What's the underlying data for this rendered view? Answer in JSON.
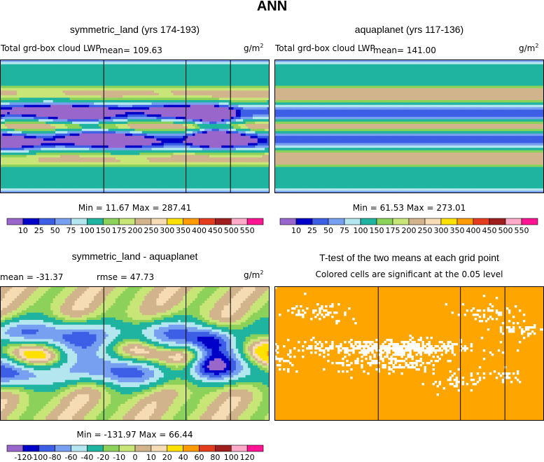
{
  "title": "ANN",
  "colors": {
    "land_frame": "#000000",
    "sig_orange": "#FFA500",
    "sig_white": "#FFFFFF"
  },
  "panels": [
    {
      "id": "p1",
      "title": "symmetric_land (yrs 174-193)",
      "left_text": "Total grd-box cloud LWP",
      "mean_text": "mean= 109.63",
      "units": "g/m",
      "units_sup": "2",
      "minmax": "Min =  11.67 Max = 287.41"
    },
    {
      "id": "p2",
      "title": "aquaplanet (yrs 117-136)",
      "left_text": "Total grd-box cloud LWP",
      "mean_text": "mean= 141.00",
      "units": "g/m",
      "units_sup": "2",
      "minmax": "Min =  61.53 Max = 273.01"
    },
    {
      "id": "p3",
      "title": "symmetric_land - aquaplanet",
      "left_text": "mean = -31.37",
      "mean_text": "rmse =  47.73",
      "units": "g/m",
      "units_sup": "2",
      "minmax": "Min = -131.97 Max =  66.44"
    },
    {
      "id": "p4",
      "title": "T-test of the two means at each grid point",
      "left_text": "Colored cells are significant at the 0.05 level"
    }
  ],
  "chart_data": [
    {
      "type": "heatmap",
      "name": "symmetric_land",
      "title": "symmetric_land (yrs 174-193)",
      "variable": "Total grd-box cloud LWP",
      "units": "g/m2",
      "mean": 109.63,
      "min": 11.67,
      "max": 287.41,
      "colorbar": {
        "levels": [
          10,
          25,
          50,
          75,
          100,
          150,
          175,
          200,
          250,
          300,
          350,
          400,
          450,
          500,
          550
        ],
        "tick_labels": [
          "10",
          "25",
          "50",
          "75",
          "100",
          "150",
          "175",
          "200",
          "250",
          "300",
          "350",
          "400",
          "450",
          "500",
          "550"
        ],
        "colors": [
          "#9966CC",
          "#0000C8",
          "#3C5FE6",
          "#78A0F0",
          "#B4E6F0",
          "#1EB4A0",
          "#8CD25A",
          "#C8E678",
          "#D2B48C",
          "#F5DCB4",
          "#FFE100",
          "#FF9B00",
          "#E63C1E",
          "#A01E1E",
          "#FFAAC8",
          "#FF1493"
        ]
      }
    },
    {
      "type": "heatmap",
      "name": "aquaplanet",
      "title": "aquaplanet (yrs 117-136)",
      "variable": "Total grd-box cloud LWP",
      "units": "g/m2",
      "mean": 141.0,
      "min": 61.53,
      "max": 273.01,
      "colorbar": {
        "levels": [
          10,
          25,
          50,
          75,
          100,
          150,
          175,
          200,
          250,
          300,
          350,
          400,
          450,
          500,
          550
        ],
        "tick_labels": [
          "10",
          "25",
          "50",
          "75",
          "100",
          "150",
          "175",
          "200",
          "250",
          "300",
          "350",
          "400",
          "450",
          "500",
          "550"
        ],
        "colors": [
          "#9966CC",
          "#0000C8",
          "#3C5FE6",
          "#78A0F0",
          "#B4E6F0",
          "#1EB4A0",
          "#8CD25A",
          "#C8E678",
          "#D2B48C",
          "#F5DCB4",
          "#FFE100",
          "#FF9B00",
          "#E63C1E",
          "#A01E1E",
          "#FFAAC8",
          "#FF1493"
        ]
      }
    },
    {
      "type": "heatmap",
      "name": "difference",
      "title": "symmetric_land - aquaplanet",
      "units": "g/m2",
      "mean": -31.37,
      "rmse": 47.73,
      "min": -131.97,
      "max": 66.44,
      "colorbar": {
        "levels": [
          -120,
          -100,
          -80,
          -60,
          -40,
          -20,
          -10,
          0,
          10,
          20,
          40,
          60,
          80,
          100,
          120
        ],
        "tick_labels": [
          "-120",
          "-100",
          "-80",
          "-60",
          "-40",
          "-20",
          "-10",
          "0",
          "10",
          "20",
          "40",
          "60",
          "80",
          "100",
          "120"
        ],
        "colors": [
          "#9966CC",
          "#0000C8",
          "#3C5FE6",
          "#78A0F0",
          "#B4E6F0",
          "#1EB4A0",
          "#8CD25A",
          "#C8E678",
          "#D2B48C",
          "#F5DCB4",
          "#FFE100",
          "#FF9B00",
          "#E63C1E",
          "#A01E1E",
          "#FFAAC8",
          "#FF1493"
        ]
      }
    },
    {
      "type": "heatmap",
      "name": "t-test",
      "title": "T-test of the two means at each grid point",
      "note": "Colored cells are significant at the 0.05 level",
      "significance_level": 0.05
    }
  ]
}
